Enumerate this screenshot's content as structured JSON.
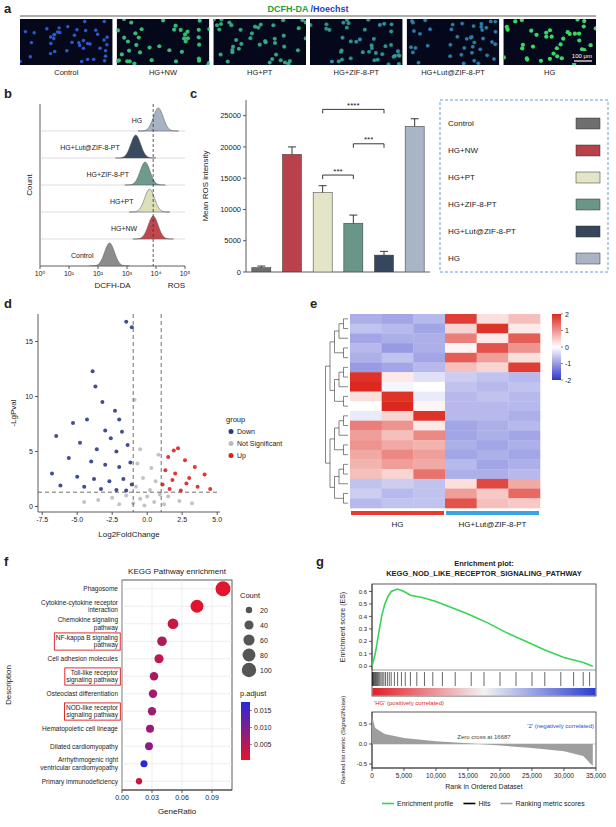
{
  "chart_data": [
    {
      "type": "image_grid",
      "panel_label": "a",
      "title": "DCFH-DA /Hoechst",
      "categories": [
        "Control",
        "HG+NW",
        "HG+PT",
        "HG+ZIF-8-PT",
        "HG+Lut@ZIF-8-PT",
        "HG"
      ],
      "scale_bar_label": "100 μm"
    },
    {
      "type": "ridgeline",
      "panel_label": "b",
      "xlabel": "DCFH-DA",
      "ylabel": "Count",
      "annotations": [
        "ROS"
      ],
      "log": "x",
      "xlim": [
        1,
        100000
      ],
      "xticks": [
        {
          "value": 1,
          "label": "10⁰"
        },
        {
          "value": 10,
          "label": "10¹"
        },
        {
          "value": 100,
          "label": "10²"
        },
        {
          "value": 1000,
          "label": "10³"
        },
        {
          "value": 10000,
          "label": "10⁴"
        },
        {
          "value": 100000,
          "label": "10⁵"
        }
      ],
      "reference_x": 8000,
      "series": [
        {
          "name": "Control",
          "color": "#8c8c8c",
          "values": [
            250
          ]
        },
        {
          "name": "HG+NW",
          "color": "#c0474b",
          "values": [
            8000
          ]
        },
        {
          "name": "HG+PT",
          "color": "#dcdfb8",
          "values": [
            6000
          ]
        },
        {
          "name": "HG+ZIF-8-PT",
          "color": "#6f9a8e",
          "values": [
            4200
          ]
        },
        {
          "name": "HG+Lut@ZIF-8-PT",
          "color": "#3a4a60",
          "values": [
            2000
          ]
        },
        {
          "name": "HG",
          "color": "#a7b3c2",
          "values": [
            12000
          ]
        }
      ]
    },
    {
      "type": "bar",
      "panel_label": "c",
      "ylabel": "Mean ROS intensity",
      "categories": [
        "Control",
        "HG+NW",
        "HG+PT",
        "HG+ZIF-8-PT",
        "HG+Lut@ZIF-8-PT",
        "HG"
      ],
      "values": [
        700,
        18800,
        12700,
        7800,
        2700,
        23300
      ],
      "errors": [
        250,
        1200,
        1100,
        1300,
        600,
        1200
      ],
      "colors": [
        "#6e6e6e",
        "#b8414a",
        "#e3e5c6",
        "#6a9589",
        "#36465c",
        "#a9b5c4"
      ],
      "ylim": [
        0,
        27500
      ],
      "yticks": [
        0,
        5000,
        10000,
        15000,
        20000,
        25000
      ],
      "tick_labels": "y",
      "legend": "right",
      "annotations": [
        {
          "label": "****",
          "from": 2,
          "to": 4,
          "y": 26000
        },
        {
          "label": "***",
          "from": 3,
          "to": 4,
          "y": 20500
        },
        {
          "label": "***",
          "from": 2,
          "to": 3,
          "y": 15500
        }
      ]
    },
    {
      "type": "scatter",
      "panel_label": "d",
      "xlabel": "Log2FoldChange",
      "ylabel": "-LgPval",
      "xlim": [
        -7.8,
        5.2
      ],
      "ylim": [
        -0.5,
        17.5
      ],
      "xticks": [
        -7.5,
        {
          "value": -5,
          "label": "-5.0"
        },
        -2.5,
        {
          "value": 0,
          "label": "0.0"
        },
        2.5,
        {
          "value": 5,
          "label": "5.0"
        }
      ],
      "yticks": [
        0,
        5,
        10,
        15
      ],
      "reference_lines": {
        "x": [
          -1,
          1
        ],
        "y": [
          1.3
        ]
      },
      "legend": "right",
      "legend_title": "group",
      "series": [
        {
          "name": "Down",
          "color": "#2b3a84",
          "x": [
            -1.5,
            -1.1,
            -3.9,
            -3.7,
            -3.2,
            -5.3,
            -4.3,
            -2.3,
            -2.0,
            -6.5,
            -3.0,
            -2.6,
            -1.8,
            -4.8,
            -3.6,
            -2.2,
            -1.4,
            -5.6,
            -4.0,
            -3.0,
            -2.0,
            -1.2,
            -6.8,
            -5.0,
            -3.8,
            -2.7,
            -1.7,
            -1.1,
            -4.5,
            -3.3,
            -2.2,
            -1.5,
            -6.2
          ],
          "values": [
            16.8,
            16.3,
            12.3,
            10.9,
            9.5,
            7.6,
            7.9,
            8.7,
            7.9,
            6.4,
            6.9,
            6.2,
            6.8,
            5.8,
            5.2,
            5.0,
            5.6,
            4.4,
            4.1,
            3.8,
            3.6,
            4.0,
            3.0,
            2.7,
            2.5,
            2.3,
            2.5,
            2.0,
            1.8,
            1.6,
            1.5,
            1.45,
            1.9
          ]
        },
        {
          "name": "Not Significant",
          "color": "#bdbdbd",
          "x": [
            -0.5,
            -0.7,
            0.3,
            -0.3,
            0.6,
            -0.8,
            0.2,
            -1.5,
            -2.5,
            -3.5,
            1.5,
            2.3,
            -0.5,
            0.5,
            -1.0,
            0.9,
            -4.5,
            3.2,
            -0.2,
            1.2,
            -2.0,
            0.0,
            0.8,
            -0.9
          ],
          "values": [
            5.2,
            3.9,
            3.5,
            2.6,
            2.3,
            1.8,
            1.5,
            1.0,
            0.8,
            0.6,
            0.9,
            0.5,
            0.7,
            0.4,
            0.3,
            1.1,
            0.4,
            0.3,
            0.1,
            0.2,
            0.2,
            0.9,
            4.7,
            9.7
          ]
        },
        {
          "name": "Up",
          "color": "#e0201b",
          "x": [
            1.9,
            2.2,
            1.5,
            2.7,
            3.4,
            1.3,
            2.0,
            4.1,
            1.8,
            2.8,
            1.1,
            3.6,
            4.5,
            1.6,
            2.4,
            3.0
          ],
          "values": [
            5.1,
            5.3,
            4.5,
            4.2,
            3.6,
            3.3,
            3.0,
            2.9,
            2.4,
            2.1,
            2.0,
            1.8,
            1.6,
            1.6,
            1.45,
            2.6
          ]
        }
      ]
    },
    {
      "type": "heatmap",
      "panel_label": "e",
      "color_range": [
        -2,
        2
      ],
      "color_ticks": [
        2,
        1,
        0,
        -1,
        -2
      ],
      "groups": [
        {
          "name": "HG",
          "color": "#e8392c",
          "columns": 3
        },
        {
          "name": "HG+Lut@ZIF-8-PT",
          "color": "#3ba3e0",
          "columns": 3
        }
      ],
      "values": [
        [
          -0.8,
          -0.9,
          -0.7,
          1.8,
          0.3,
          0.6
        ],
        [
          -0.6,
          -0.7,
          -0.9,
          0.4,
          1.9,
          0.2
        ],
        [
          -0.9,
          -0.8,
          -0.8,
          1.2,
          0.2,
          1.5
        ],
        [
          -0.7,
          -1.0,
          -0.8,
          0.1,
          1.6,
          1.0
        ],
        [
          -0.8,
          -0.6,
          -0.9,
          1.5,
          0.9,
          0.3
        ],
        [
          -1.0,
          -0.9,
          -0.7,
          0.6,
          0.4,
          1.8
        ],
        [
          1.9,
          0.2,
          -0.3,
          -0.5,
          -0.6,
          -0.7
        ],
        [
          2.0,
          -0.1,
          0.0,
          -0.6,
          -0.7,
          -0.6
        ],
        [
          0.3,
          1.9,
          -0.2,
          -0.7,
          -0.6,
          -0.7
        ],
        [
          0.0,
          2.0,
          0.1,
          -0.7,
          -0.7,
          -0.7
        ],
        [
          -0.2,
          0.4,
          1.9,
          -0.7,
          -0.7,
          -0.8
        ],
        [
          1.2,
          1.0,
          0.2,
          -0.9,
          -0.8,
          -0.7
        ],
        [
          0.9,
          0.6,
          1.1,
          -0.9,
          -0.8,
          -0.9
        ],
        [
          1.0,
          0.8,
          0.7,
          -0.8,
          -0.9,
          -0.8
        ],
        [
          0.8,
          1.1,
          0.9,
          -0.9,
          -0.8,
          -0.9
        ],
        [
          0.7,
          0.9,
          0.8,
          -0.7,
          -0.9,
          -0.8
        ],
        [
          0.6,
          0.4,
          1.3,
          -0.8,
          -0.8,
          -0.7
        ],
        [
          -0.6,
          -0.5,
          -0.6,
          0.3,
          1.7,
          0.8
        ],
        [
          -0.5,
          -0.7,
          -0.6,
          0.9,
          0.5,
          1.4
        ],
        [
          -0.7,
          -0.6,
          -0.6,
          1.6,
          0.6,
          0.5
        ]
      ]
    },
    {
      "type": "dot",
      "panel_label": "f",
      "title": "KEGG Pathway enrichment",
      "xlabel": "GeneRatio",
      "ylabel": "Description",
      "grid": true,
      "categories": [
        "Phagosome",
        "Cytokine-cytokine receptor interaction",
        "Chemokine signaling pathway",
        "NF-kappa B signaling pathway",
        "Cell adhesion molecules",
        "Toll-like receptor signaling pathway",
        "Osteoclast differentiation",
        "NOD-like receptor signaling pathway",
        "Hematopoietic cell lineage",
        "Dilated cardiomyopathy",
        "Arrhythmogenic right ventricular cardiomyopathy",
        "Primary immunodeficiency"
      ],
      "values": [
        0.101,
        0.075,
        0.051,
        0.04,
        0.037,
        0.032,
        0.031,
        0.03,
        0.028,
        0.027,
        0.022,
        0.017
      ],
      "counts": [
        108,
        80,
        55,
        44,
        40,
        35,
        34,
        33,
        31,
        30,
        24,
        19
      ],
      "p_adjust": [
        0.0008,
        0.001,
        0.003,
        0.0055,
        0.004,
        0.006,
        0.0065,
        0.007,
        0.0075,
        0.009,
        0.017,
        0.003
      ],
      "xlim": [
        0,
        0.11
      ],
      "xticks": [
        {
          "value": 0,
          "label": "0.00"
        },
        0.03,
        0.06,
        0.09
      ],
      "highlight": [
        3,
        5,
        7
      ],
      "size_legend": {
        "title": "Count",
        "values": [
          20,
          40,
          60,
          80,
          100
        ]
      },
      "color_legend_title": "p.adjust",
      "color_range": [
        0.0005,
        0.0175
      ],
      "color_ticks": [
        0.005,
        {
          "value": 0.01,
          "label": "0.010"
        },
        0.015
      ]
    },
    {
      "type": "gsea",
      "panel_label": "g",
      "title": "Enrichment plot:",
      "subtitle": "KEGG_NOD_LIKE_RECEPTOR_SIGNALING_PATHWAY",
      "xlabel": "Rank in Ordered Dataset",
      "ylabel": "Enrichment score (ES)",
      "y2label": "Ranked list metric (Signal2Noise)",
      "xlim": [
        0,
        35000
      ],
      "xticks": [
        0,
        {
          "value": 5000,
          "label": "5,000"
        },
        {
          "value": 10000,
          "label": "10,000"
        },
        {
          "value": 15000,
          "label": "15,000"
        },
        {
          "value": 20000,
          "label": "20,000"
        },
        {
          "value": 25000,
          "label": "25,000"
        },
        {
          "value": 30000,
          "label": "30,000"
        },
        {
          "value": 35000,
          "label": "35,000"
        }
      ],
      "ylim": [
        -0.03,
        0.66
      ],
      "yticks": [
        {
          "value": 0,
          "label": "0.0"
        },
        0.1,
        0.2,
        0.3,
        0.4,
        0.5,
        0.6
      ],
      "y2lim": [
        -0.6,
        0.8
      ],
      "y2ticks": [
        -0.5,
        {
          "value": 0,
          "label": "0.0"
        },
        0.5
      ],
      "annotations": [
        "'HG' (positively correlated)",
        "Zero cross at 16687",
        "'2' (negatively correlated)"
      ],
      "legend": "bottom",
      "series": [
        {
          "name": "Enrichment profile",
          "type": "line",
          "color": "#39d353",
          "x": [
            0,
            500,
            1000,
            1500,
            2000,
            2500,
            3000,
            4000,
            5000,
            6000,
            8000,
            10000,
            12000,
            15000,
            18000,
            21000,
            24000,
            27000,
            30000,
            33000,
            34500
          ],
          "values": [
            0,
            0.1,
            0.25,
            0.4,
            0.5,
            0.56,
            0.6,
            0.62,
            0.6,
            0.57,
            0.55,
            0.52,
            0.48,
            0.42,
            0.35,
            0.27,
            0.2,
            0.13,
            0.07,
            0.03,
            0
          ]
        },
        {
          "name": "Hits",
          "type": "rug",
          "color": "#000000",
          "x": [
            50,
            120,
            200,
            300,
            420,
            550,
            700,
            850,
            1000,
            1200,
            1400,
            1600,
            1850,
            2100,
            2400,
            2700,
            3000,
            3500,
            4000,
            4600,
            5200,
            6000,
            7000,
            8200,
            9500,
            11000,
            13000,
            15500,
            17500,
            20000,
            22500,
            25000,
            27000,
            29500,
            31500,
            33000,
            34000
          ]
        },
        {
          "name": "Ranking metric scores",
          "type": "area",
          "color": "#9e9e9e",
          "axis": "y2",
          "x": [
            0,
            500,
            2000,
            5000,
            10000,
            15000,
            16687,
            20000,
            25000,
            30000,
            33000,
            34500
          ],
          "values": [
            0.7,
            0.4,
            0.25,
            0.15,
            0.07,
            0.02,
            0,
            -0.04,
            -0.1,
            -0.18,
            -0.3,
            -0.55
          ]
        }
      ]
    }
  ]
}
